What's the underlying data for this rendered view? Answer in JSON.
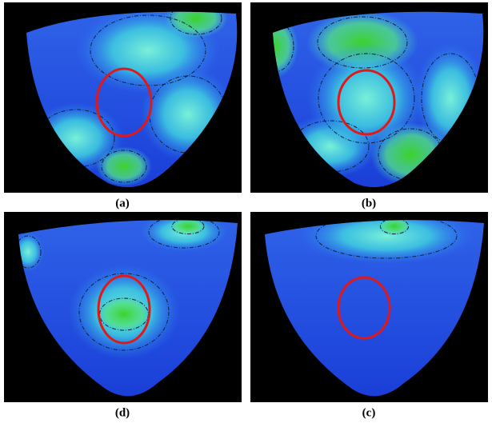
{
  "panels": [
    {
      "label": "(a)"
    },
    {
      "label": "(b)"
    },
    {
      "label": "(d)"
    },
    {
      "label": "(c)"
    }
  ]
}
